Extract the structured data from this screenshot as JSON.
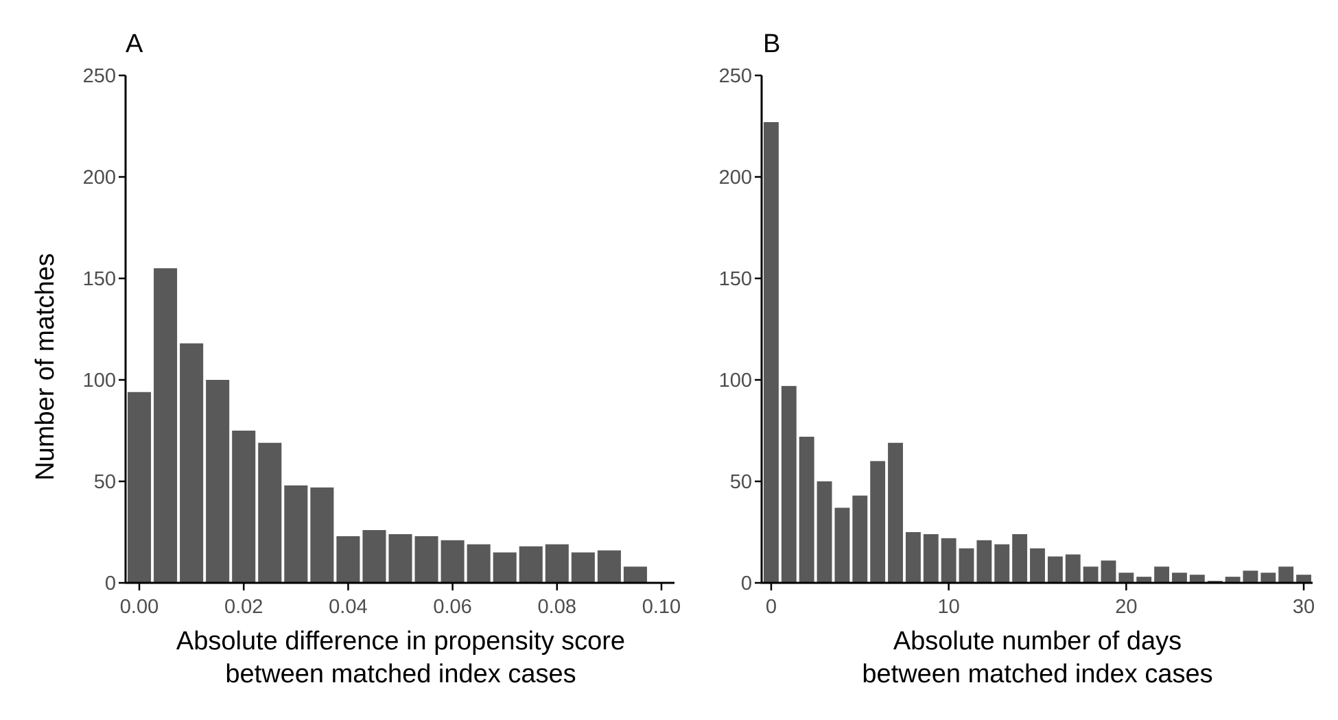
{
  "chart_data": [
    {
      "type": "bar",
      "panel": "A",
      "title": "",
      "ylabel": "Number of matches",
      "xlabel": [
        "Absolute difference in propensity score",
        "between matched index cases"
      ],
      "bin_width": 0.005,
      "x_centers": [
        0.0,
        0.005,
        0.01,
        0.015,
        0.02,
        0.025,
        0.03,
        0.035,
        0.04,
        0.045,
        0.05,
        0.055,
        0.06,
        0.065,
        0.07,
        0.075,
        0.08,
        0.085,
        0.09,
        0.095,
        0.1
      ],
      "values": [
        94,
        155,
        118,
        100,
        75,
        69,
        48,
        47,
        23,
        26,
        24,
        23,
        21,
        19,
        15,
        18,
        19,
        15,
        16,
        8,
        0
      ],
      "xlim": [
        -0.0025,
        0.1025
      ],
      "ylim": [
        0,
        250
      ],
      "xticks": [
        0.0,
        0.02,
        0.04,
        0.06,
        0.08,
        0.1
      ],
      "xtick_labels": [
        "0.00",
        "0.02",
        "0.04",
        "0.06",
        "0.08",
        "0.10"
      ],
      "yticks": [
        0,
        50,
        100,
        150,
        200,
        250
      ],
      "ytick_labels": [
        "0",
        "50",
        "100",
        "150",
        "200",
        "250"
      ],
      "grid": false,
      "bar_color": "#595959"
    },
    {
      "type": "bar",
      "panel": "B",
      "title": "",
      "ylabel": "",
      "xlabel": [
        "Absolute number of days",
        "between matched index cases"
      ],
      "bin_width": 1,
      "x_centers": [
        0,
        1,
        2,
        3,
        4,
        5,
        6,
        7,
        8,
        9,
        10,
        11,
        12,
        13,
        14,
        15,
        16,
        17,
        18,
        19,
        20,
        21,
        22,
        23,
        24,
        25,
        26,
        27,
        28,
        29,
        30
      ],
      "values": [
        227,
        97,
        72,
        50,
        37,
        43,
        60,
        69,
        25,
        24,
        22,
        17,
        21,
        19,
        24,
        17,
        13,
        14,
        8,
        11,
        5,
        3,
        8,
        5,
        4,
        1,
        3,
        6,
        5,
        8,
        4
      ],
      "xlim": [
        -0.5,
        30.5
      ],
      "ylim": [
        0,
        250
      ],
      "xticks": [
        0,
        10,
        20,
        30
      ],
      "xtick_labels": [
        "0",
        "10",
        "20",
        "30"
      ],
      "yticks": [
        0,
        50,
        100,
        150,
        200,
        250
      ],
      "ytick_labels": [
        "0",
        "50",
        "100",
        "150",
        "200",
        "250"
      ],
      "grid": false,
      "bar_color": "#595959"
    }
  ]
}
